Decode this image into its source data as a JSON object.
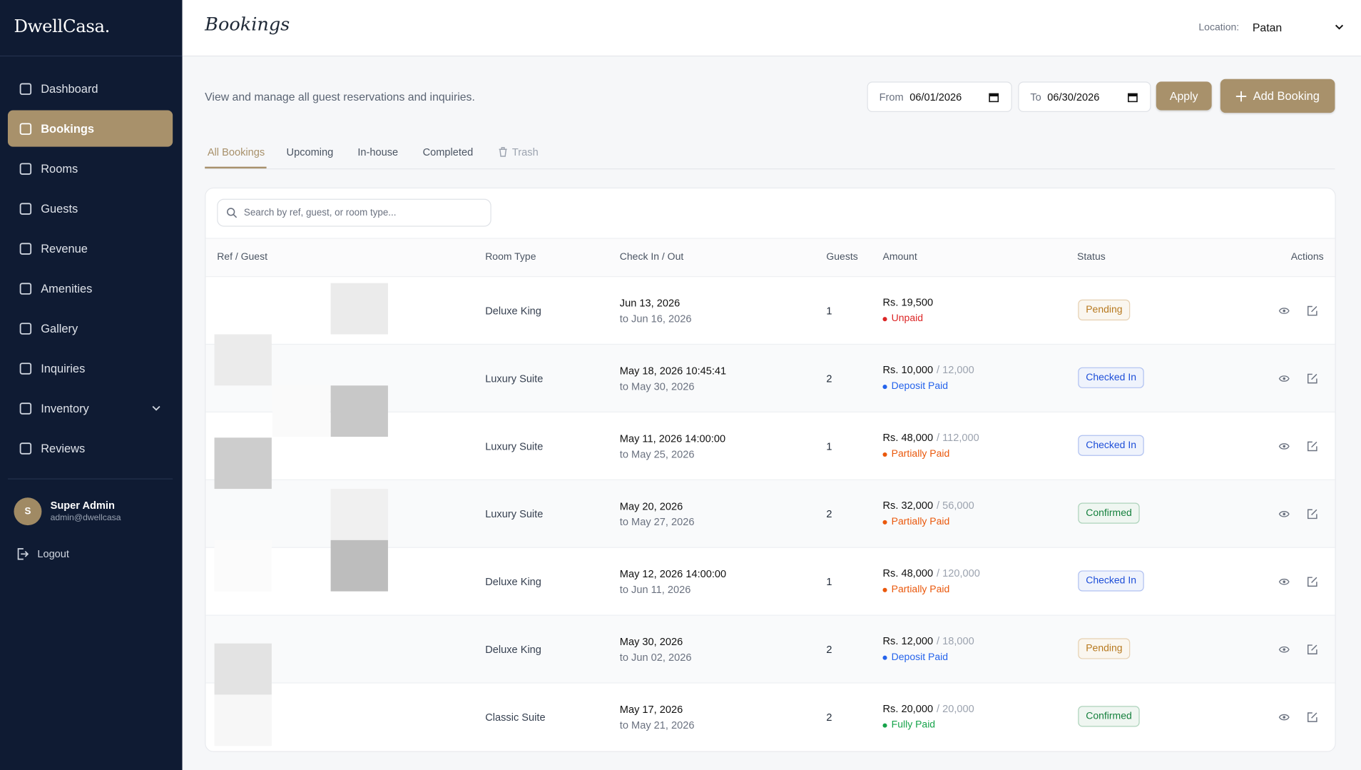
{
  "sidebar": {
    "brand": "DwellCasa.",
    "nav": [
      "Dashboard",
      "Bookings",
      "Rooms",
      "Guests",
      "Revenue",
      "Amenities",
      "Gallery",
      "Inquiries",
      "Inventory",
      "Reviews"
    ],
    "active": "Bookings",
    "user": {
      "initial": "S",
      "name": "Super Admin",
      "email": "admin@dwellcasa"
    },
    "logout": "Logout"
  },
  "header": {
    "title": "Bookings",
    "location_label": "Location:",
    "location": "Patan"
  },
  "toolbar": {
    "description": "View and manage all guest reservations and inquiries.",
    "from_label": "From",
    "from": "06/01/2026",
    "to_label": "To",
    "to": "06/30/2026",
    "apply": "Apply",
    "add": "Add Booking"
  },
  "tabs": [
    "All Bookings",
    "Upcoming",
    "In-house",
    "Completed",
    "Trash"
  ],
  "search_placeholder": "Search by ref, guest, or room type...",
  "table": {
    "headers": [
      "Ref / Guest",
      "Room Type",
      "Check In / Out",
      "Guests",
      "Amount",
      "Status",
      "Actions"
    ],
    "rows": [
      {
        "room": "Deluxe King",
        "check_in": "Jun 13, 2026",
        "check_out": "to Jun 16, 2026",
        "guests": 1,
        "amount": "Rs. 19,500",
        "payment": "Unpaid",
        "payment_color": "#dc2626",
        "status": "Pending",
        "status_color": "#b7791f"
      },
      {
        "room": "Luxury Suite",
        "check_in": "May 18, 2026 10:45:41",
        "check_out": "to May 30, 2026",
        "guests": 2,
        "amount": "Rs. 10,000",
        "total": "/ 12,000",
        "payment": "Deposit Paid",
        "payment_color": "#2563eb",
        "status": "Checked In",
        "status_color": "#1d4ed8"
      },
      {
        "room": "Luxury Suite",
        "check_in": "May 11, 2026 14:00:00",
        "check_out": "to May 25, 2026",
        "guests": 1,
        "amount": "Rs. 48,000",
        "total": "/ 112,000",
        "payment": "Partially Paid",
        "payment_color": "#ea580c",
        "status": "Checked In",
        "status_color": "#1d4ed8"
      },
      {
        "room": "Luxury Suite",
        "check_in": "May 20, 2026",
        "check_out": "to May 27, 2026",
        "guests": 2,
        "amount": "Rs. 32,000",
        "total": "/ 56,000",
        "payment": "Partially Paid",
        "payment_color": "#ea580c",
        "status": "Confirmed",
        "status_color": "#15803d"
      },
      {
        "room": "Deluxe King",
        "check_in": "May 12, 2026 14:00:00",
        "check_out": "to Jun 11, 2026",
        "guests": 1,
        "amount": "Rs. 48,000",
        "total": "/ 120,000",
        "payment": "Partially Paid",
        "payment_color": "#ea580c",
        "status": "Checked In",
        "status_color": "#1d4ed8"
      },
      {
        "room": "Deluxe King",
        "check_in": "May 30, 2026",
        "check_out": "to Jun 02, 2026",
        "guests": 2,
        "amount": "Rs. 12,000",
        "total": "/ 18,000",
        "payment": "Deposit Paid",
        "payment_color": "#2563eb",
        "status": "Pending",
        "status_color": "#b7791f"
      },
      {
        "room": "Classic Suite",
        "check_in": "May 17, 2026",
        "check_out": "to May 21, 2026",
        "guests": 2,
        "amount": "Rs. 20,000",
        "total": "/ 20,000",
        "payment": "Fully Paid",
        "payment_color": "#16a34a",
        "status": "Confirmed",
        "status_color": "#15803d"
      }
    ]
  }
}
